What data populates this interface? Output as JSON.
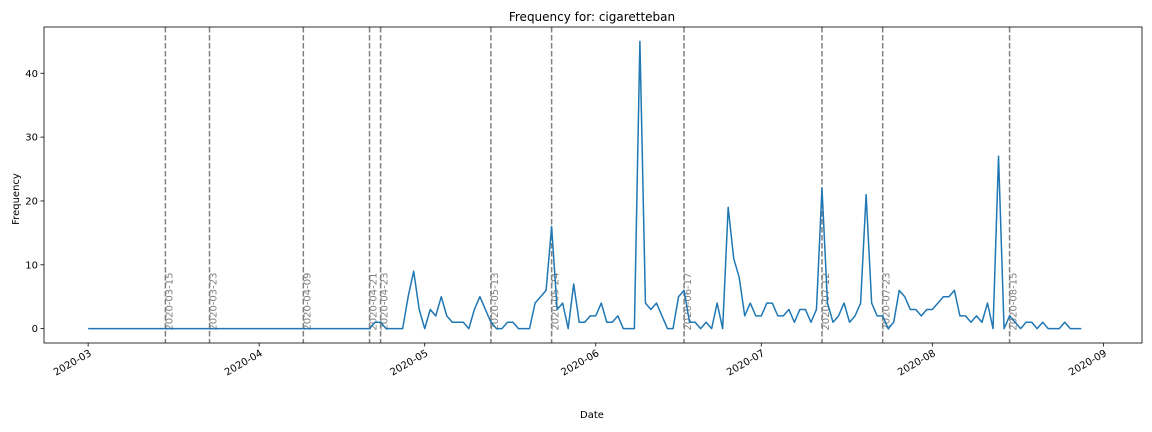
{
  "chart_data": {
    "type": "line",
    "title": "Frequency for: cigaretteban",
    "xlabel": "Date",
    "ylabel": "Frequency",
    "xlim": [
      "2020-02-22",
      "2020-09-08"
    ],
    "ylim": [
      -2.25,
      47.25
    ],
    "x_ticks": [
      "2020-03",
      "2020-04",
      "2020-05",
      "2020-06",
      "2020-07",
      "2020-08",
      "2020-09"
    ],
    "y_ticks": [
      0,
      10,
      20,
      30,
      40
    ],
    "line_color": "#1f77b4",
    "vline_color": "#808080",
    "vlines": [
      {
        "date": "2020-03-15",
        "label": "2020-03-15"
      },
      {
        "date": "2020-03-23",
        "label": "2020-03-23"
      },
      {
        "date": "2020-04-09",
        "label": "2020-04-09"
      },
      {
        "date": "2020-04-21",
        "label": "2020-04-21"
      },
      {
        "date": "2020-04-23",
        "label": "2020-04-23"
      },
      {
        "date": "2020-05-13",
        "label": "2020-05-13"
      },
      {
        "date": "2020-05-24",
        "label": "2020-05-24"
      },
      {
        "date": "2020-06-17",
        "label": "2020-06-17"
      },
      {
        "date": "2020-07-12",
        "label": "2020-07-12"
      },
      {
        "date": "2020-07-23",
        "label": "2020-07-23"
      },
      {
        "date": "2020-08-15",
        "label": "2020-08-15"
      }
    ],
    "series": [
      {
        "start": "2020-03-01",
        "values": [
          0,
          0,
          0,
          0,
          0,
          0,
          0,
          0,
          0,
          0,
          0,
          0,
          0,
          0,
          0,
          0,
          0,
          0,
          0,
          0,
          0,
          0,
          0,
          0,
          0,
          0,
          0,
          0,
          0,
          0,
          0,
          0,
          0,
          0,
          0,
          0,
          0,
          0,
          0,
          0,
          0,
          0,
          0,
          0,
          0,
          0,
          0,
          0,
          0,
          0,
          0,
          0,
          1,
          1,
          0,
          0,
          0,
          0,
          5,
          9,
          3,
          0,
          3,
          2,
          5,
          2,
          1,
          1,
          1,
          0,
          3,
          5,
          3,
          1,
          0,
          0,
          1,
          1,
          0,
          0,
          0,
          4,
          5,
          6,
          16,
          3,
          4,
          0,
          7,
          1,
          1,
          2,
          2,
          4,
          1,
          1,
          2,
          0,
          0,
          0,
          45,
          4,
          3,
          4,
          2,
          0,
          0,
          5,
          6,
          1,
          1,
          0,
          1,
          0,
          4,
          0,
          19,
          11,
          8,
          2,
          4,
          2,
          2,
          4,
          4,
          2,
          2,
          3,
          1,
          3,
          3,
          1,
          3,
          22,
          4,
          1,
          2,
          4,
          1,
          2,
          4,
          21,
          4,
          2,
          2,
          0,
          1,
          6,
          5,
          3,
          3,
          2,
          3,
          3,
          4,
          5,
          5,
          6,
          2,
          2,
          1,
          2,
          1,
          4,
          0,
          27,
          0,
          2,
          1,
          0,
          1,
          1,
          0,
          1,
          0,
          0,
          0,
          1,
          0,
          0,
          0
        ]
      }
    ]
  }
}
